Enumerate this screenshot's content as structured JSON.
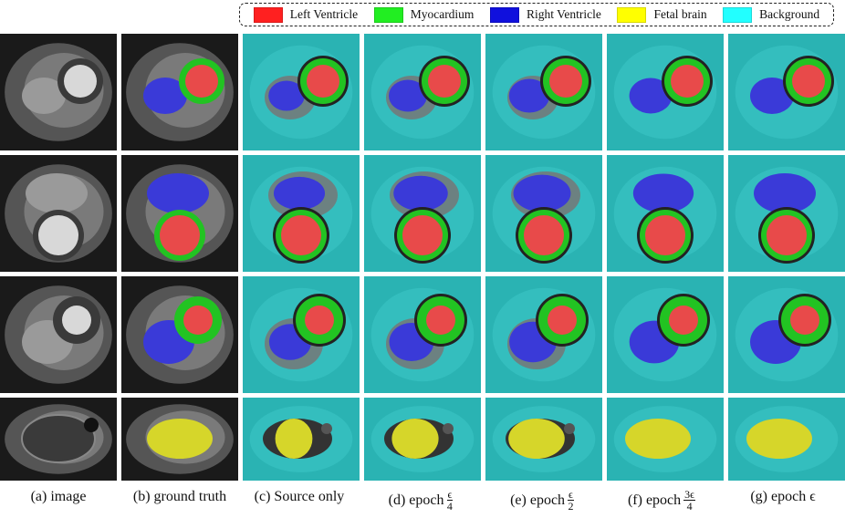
{
  "legend": [
    {
      "label": "Left Ventricle",
      "color": "#ff2020"
    },
    {
      "label": "Myocardium",
      "color": "#22ee22"
    },
    {
      "label": "Right Ventricle",
      "color": "#1010dd"
    },
    {
      "label": "Fetal brain",
      "color": "#ffff00"
    },
    {
      "label": "Background",
      "color": "#22ffff"
    }
  ],
  "captions": {
    "a": "(a) image",
    "b": "(b) ground truth",
    "c": "(c) Source only",
    "d_prefix": "(d) epoch",
    "d_num": "ϵ",
    "d_den": "4",
    "e_prefix": "(e) epoch",
    "e_num": "ϵ",
    "e_den": "2",
    "f_prefix": "(f) epoch",
    "f_num": "3ϵ",
    "f_den": "4",
    "g": "(g) epoch ϵ"
  },
  "colors": {
    "teal": "#2ab3b3",
    "lv": "#e84a4a",
    "myo": "#22c322",
    "rv": "#3a3ad8",
    "brain": "#d6d62a",
    "gray": "#777777"
  }
}
